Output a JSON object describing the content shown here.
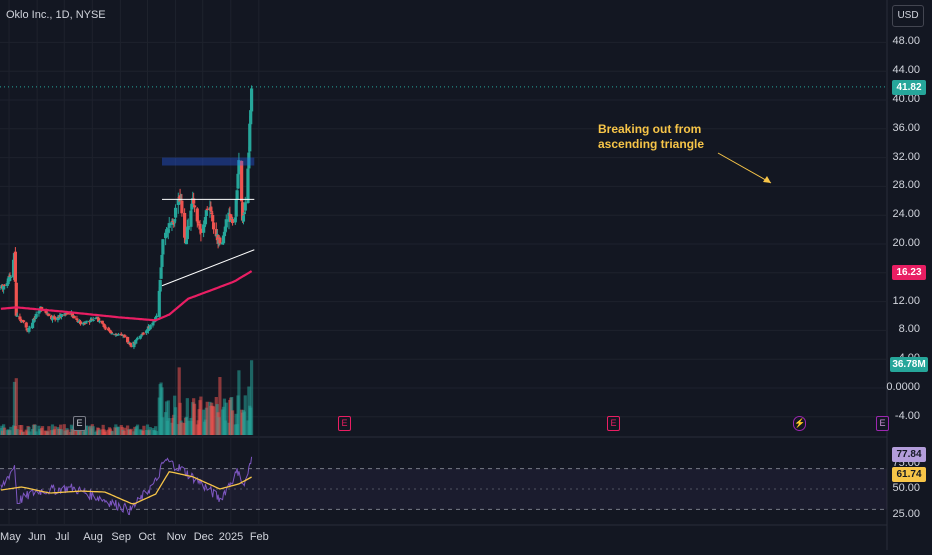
{
  "header": {
    "symbol_label": "Oklo Inc., 1D, NYSE",
    "currency": "USD"
  },
  "colors": {
    "up": "#26a69a",
    "down": "#ef5350",
    "ma": "#e91e63",
    "rsi": "#7e57c2",
    "rsi_ma": "#f7c548",
    "annotation": "#f7c548"
  },
  "price_labels": {
    "last": "41.82",
    "ma": "16.23",
    "volume": "36.78M",
    "rsi": "77.84",
    "rsi_ma": "61.74"
  },
  "annotation": {
    "text": "Breaking out from\nascending triangle"
  },
  "event_markers": [
    {
      "label": "E",
      "style": "gray"
    },
    {
      "label": "E",
      "style": "red"
    },
    {
      "label": "E",
      "style": "red"
    },
    {
      "label": "⚡",
      "style": "purple"
    },
    {
      "label": "E",
      "style": "purple"
    }
  ],
  "chart_data": {
    "type": "candlestick",
    "title": "Oklo Inc., 1D, NYSE",
    "x_ticks": [
      "May",
      "Jun",
      "Jul",
      "Aug",
      "Sep",
      "Oct",
      "Nov",
      "Dec",
      "2025",
      "Feb"
    ],
    "price_axis": {
      "ticks": [
        "48.00",
        "44.00",
        "40.00",
        "36.00",
        "32.00",
        "28.00",
        "24.00",
        "20.00",
        "16.00",
        "12.00",
        "8.00",
        "4.00",
        "0.0000",
        "-4.00"
      ],
      "range": [
        -6,
        50
      ]
    },
    "rsi_axis": {
      "ticks": [
        "75.00",
        "50.00",
        "25.00"
      ],
      "range": [
        20,
        90
      ],
      "bands": [
        30,
        70
      ]
    },
    "candle_anchors": [
      {
        "date": "2024-04-22",
        "close": 14.0
      },
      {
        "date": "2024-04-28",
        "close": 14.5
      },
      {
        "date": "2024-05-03",
        "close": 15.8
      },
      {
        "date": "2024-05-07",
        "close": 18.8
      },
      {
        "date": "2024-05-09",
        "close": 10.0
      },
      {
        "date": "2024-05-16",
        "close": 9.2
      },
      {
        "date": "2024-05-22",
        "close": 8.0
      },
      {
        "date": "2024-05-29",
        "close": 9.6
      },
      {
        "date": "2024-06-05",
        "close": 11.0
      },
      {
        "date": "2024-06-20",
        "close": 9.6
      },
      {
        "date": "2024-07-05",
        "close": 10.5
      },
      {
        "date": "2024-07-20",
        "close": 8.9
      },
      {
        "date": "2024-08-05",
        "close": 9.8
      },
      {
        "date": "2024-08-20",
        "close": 7.8
      },
      {
        "date": "2024-09-05",
        "close": 7.1
      },
      {
        "date": "2024-09-13",
        "close": 5.9
      },
      {
        "date": "2024-09-25",
        "close": 7.4
      },
      {
        "date": "2024-10-05",
        "close": 8.7
      },
      {
        "date": "2024-10-12",
        "close": 10.0
      },
      {
        "date": "2024-10-15",
        "close": 15.0
      },
      {
        "date": "2024-10-19",
        "close": 22.0
      },
      {
        "date": "2024-10-28",
        "close": 22.5
      },
      {
        "date": "2024-11-05",
        "close": 27.0
      },
      {
        "date": "2024-11-12",
        "close": 20.5
      },
      {
        "date": "2024-11-20",
        "close": 26.0
      },
      {
        "date": "2024-11-30",
        "close": 21.5
      },
      {
        "date": "2024-12-08",
        "close": 25.5
      },
      {
        "date": "2024-12-15",
        "close": 21.0
      },
      {
        "date": "2024-12-22",
        "close": 20.0
      },
      {
        "date": "2024-12-28",
        "close": 24.5
      },
      {
        "date": "2025-01-05",
        "close": 22.5
      },
      {
        "date": "2025-01-10",
        "close": 31.0
      },
      {
        "date": "2025-01-14",
        "close": 23.5
      },
      {
        "date": "2025-01-18",
        "close": 26.0
      },
      {
        "date": "2025-01-21",
        "close": 33.0
      },
      {
        "date": "2025-01-24",
        "close": 41.82
      }
    ],
    "moving_average": [
      {
        "date": "2024-04-22",
        "value": 11.0
      },
      {
        "date": "2024-05-09",
        "value": 11.2
      },
      {
        "date": "2024-07-01",
        "value": 10.6
      },
      {
        "date": "2024-09-01",
        "value": 9.8
      },
      {
        "date": "2024-10-10",
        "value": 9.4
      },
      {
        "date": "2024-10-25",
        "value": 10.2
      },
      {
        "date": "2024-11-15",
        "value": 12.4
      },
      {
        "date": "2024-12-15",
        "value": 13.8
      },
      {
        "date": "2025-01-05",
        "value": 14.8
      },
      {
        "date": "2025-01-24",
        "value": 16.23
      }
    ],
    "support_line": [
      {
        "date": "2024-10-17",
        "value": 14.2
      },
      {
        "date": "2025-01-27",
        "value": 19.2
      }
    ],
    "resistance_line": [
      {
        "date": "2024-10-17",
        "value": 26.2
      },
      {
        "date": "2025-01-27",
        "value": 26.2
      }
    ],
    "breakout_zone": {
      "from_date": "2024-10-17",
      "to_date": "2025-01-27",
      "low": 30.9,
      "high": 32.0
    },
    "rsi_anchors": [
      {
        "date": "2024-04-22",
        "value": 50
      },
      {
        "date": "2024-05-07",
        "value": 73
      },
      {
        "date": "2024-05-10",
        "value": 38
      },
      {
        "date": "2024-06-01",
        "value": 48
      },
      {
        "date": "2024-07-10",
        "value": 51
      },
      {
        "date": "2024-08-10",
        "value": 41
      },
      {
        "date": "2024-09-12",
        "value": 29
      },
      {
        "date": "2024-10-10",
        "value": 57
      },
      {
        "date": "2024-10-20",
        "value": 79
      },
      {
        "date": "2024-11-10",
        "value": 68
      },
      {
        "date": "2024-11-30",
        "value": 55
      },
      {
        "date": "2024-12-20",
        "value": 40
      },
      {
        "date": "2025-01-10",
        "value": 69
      },
      {
        "date": "2025-01-15",
        "value": 52
      },
      {
        "date": "2025-01-24",
        "value": 77.84
      }
    ],
    "rsi_ma_anchors": [
      {
        "date": "2024-04-22",
        "value": 49
      },
      {
        "date": "2024-05-15",
        "value": 52
      },
      {
        "date": "2024-06-15",
        "value": 46
      },
      {
        "date": "2024-07-20",
        "value": 48
      },
      {
        "date": "2024-08-15",
        "value": 47
      },
      {
        "date": "2024-09-15",
        "value": 35
      },
      {
        "date": "2024-10-10",
        "value": 45
      },
      {
        "date": "2024-10-25",
        "value": 67
      },
      {
        "date": "2024-11-20",
        "value": 62
      },
      {
        "date": "2024-12-20",
        "value": 50
      },
      {
        "date": "2025-01-10",
        "value": 55
      },
      {
        "date": "2025-01-24",
        "value": 61.74
      }
    ],
    "volume_spike_dates": [
      "2024-05-07",
      "2024-05-09",
      "2024-10-15",
      "2024-10-16",
      "2024-10-17",
      "2024-10-19",
      "2024-11-05",
      "2024-12-20",
      "2025-01-10",
      "2025-01-21",
      "2025-01-24"
    ]
  }
}
